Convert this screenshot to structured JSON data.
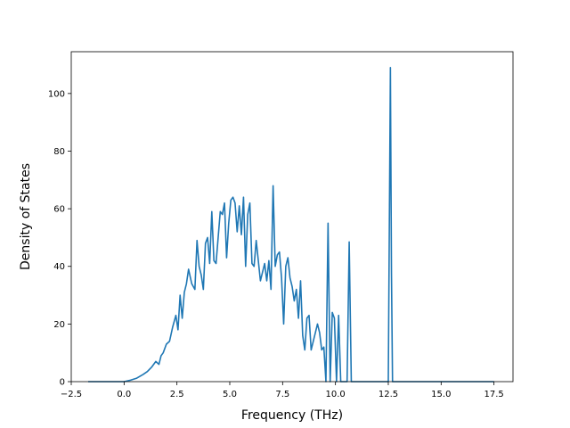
{
  "chart_data": {
    "type": "line",
    "xlabel": "Frequency (THz)",
    "ylabel": "Density of States",
    "xlim": [
      -2.5,
      18.4
    ],
    "ylim": [
      0,
      114.5
    ],
    "xticks": [
      -2.5,
      0.0,
      2.5,
      5.0,
      7.5,
      10.0,
      12.5,
      15.0,
      17.5
    ],
    "xtick_labels": [
      "−2.5",
      "0.0",
      "2.5",
      "5.0",
      "7.5",
      "10.0",
      "12.5",
      "15.0",
      "17.5"
    ],
    "yticks": [
      0,
      20,
      40,
      60,
      80,
      100
    ],
    "ytick_labels": [
      "0",
      "20",
      "40",
      "60",
      "80",
      "100"
    ],
    "grid": false,
    "series_color": "#1f77b4",
    "series": [
      {
        "x": [
          -1.7,
          -1.0,
          -0.5,
          0.0,
          0.3,
          0.6,
          0.9,
          1.1,
          1.3,
          1.5,
          1.65,
          1.75,
          1.85,
          2.0,
          2.15,
          2.3,
          2.45,
          2.55,
          2.65,
          2.75,
          2.85,
          2.95,
          3.05,
          3.2,
          3.35,
          3.45,
          3.55,
          3.65,
          3.75,
          3.85,
          3.95,
          4.05,
          4.15,
          4.25,
          4.35,
          4.45,
          4.55,
          4.65,
          4.75,
          4.85,
          4.95,
          5.05,
          5.15,
          5.25,
          5.35,
          5.45,
          5.55,
          5.65,
          5.75,
          5.85,
          5.95,
          6.05,
          6.15,
          6.25,
          6.35,
          6.45,
          6.55,
          6.65,
          6.75,
          6.85,
          6.95,
          7.05,
          7.15,
          7.25,
          7.35,
          7.45,
          7.55,
          7.65,
          7.75,
          7.85,
          7.95,
          8.05,
          8.15,
          8.25,
          8.35,
          8.45,
          8.55,
          8.65,
          8.75,
          8.85,
          8.95,
          9.05,
          9.15,
          9.25,
          9.35,
          9.45,
          9.55,
          9.65,
          9.75,
          9.85,
          9.95,
          10.05,
          10.15,
          10.25,
          10.35,
          10.45,
          10.55,
          10.65,
          10.75,
          10.85,
          12.4,
          12.5,
          12.6,
          12.65,
          12.7,
          12.8,
          12.9,
          13.5,
          15.0,
          17.5
        ],
        "y": [
          0,
          0,
          0,
          0,
          0.5,
          1.2,
          2.5,
          3.5,
          5,
          7,
          6,
          9,
          10,
          13,
          14,
          19,
          23,
          18,
          30,
          22,
          31,
          34,
          39,
          34,
          32,
          49,
          40,
          37,
          32,
          48,
          50,
          41,
          59,
          42,
          41,
          50,
          59,
          58,
          62,
          43,
          55,
          63,
          64,
          62,
          52,
          61,
          51,
          64,
          40,
          58,
          62,
          41,
          40,
          49,
          42,
          35,
          38,
          41,
          35,
          42,
          32,
          68,
          40,
          44,
          45,
          36,
          20,
          40,
          43,
          36,
          33,
          28,
          32,
          22,
          35,
          16,
          11,
          22,
          23,
          11,
          14,
          17,
          20,
          17,
          11,
          12,
          0,
          55,
          0,
          24,
          22,
          0,
          23,
          0,
          0,
          0,
          0,
          48.5,
          0,
          0,
          0,
          0,
          109,
          38,
          0,
          0,
          0,
          0,
          0,
          0
        ]
      }
    ]
  }
}
